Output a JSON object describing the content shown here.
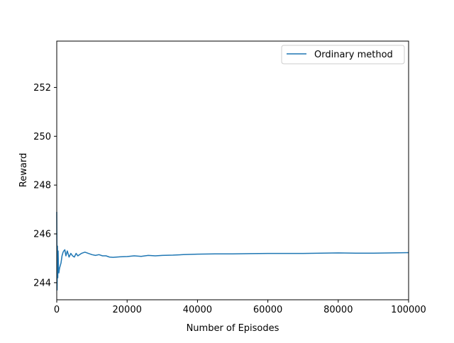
{
  "chart_data": {
    "type": "line",
    "title": "",
    "xlabel": "Number of Episodes",
    "ylabel": "Reward",
    "xlim": [
      0,
      100000
    ],
    "ylim": [
      243.3,
      253.9
    ],
    "xticks": [
      0,
      20000,
      40000,
      60000,
      80000,
      100000
    ],
    "xtick_labels": [
      "0",
      "20000",
      "40000",
      "60000",
      "80000",
      "100000"
    ],
    "yticks": [
      244,
      246,
      248,
      250,
      252
    ],
    "ytick_labels": [
      "244",
      "246",
      "248",
      "250",
      "252"
    ],
    "grid": false,
    "legend": {
      "position": "upper right",
      "entries": [
        "Ordinary method"
      ]
    },
    "series": [
      {
        "name": "Ordinary method",
        "color": "#1f77b4",
        "x": [
          0,
          100,
          200,
          300,
          400,
          500,
          600,
          700,
          800,
          1000,
          1200,
          1500,
          1800,
          2000,
          2300,
          2600,
          3000,
          3500,
          4000,
          4500,
          5000,
          5500,
          6000,
          7000,
          8000,
          9000,
          10000,
          11000,
          12000,
          13000,
          14000,
          15000,
          16000,
          17000,
          18000,
          20000,
          22000,
          24000,
          26000,
          28000,
          30000,
          33000,
          36000,
          40000,
          45000,
          50000,
          55000,
          60000,
          65000,
          70000,
          75000,
          80000,
          85000,
          90000,
          95000,
          100000
        ],
        "y": [
          246.9,
          243.7,
          245.5,
          244.2,
          245.3,
          244.6,
          244.4,
          244.5,
          244.6,
          244.7,
          244.8,
          245.1,
          245.25,
          245.3,
          245.35,
          245.1,
          245.3,
          245.05,
          245.2,
          245.1,
          245.05,
          245.2,
          245.1,
          245.2,
          245.25,
          245.2,
          245.15,
          245.12,
          245.15,
          245.1,
          245.1,
          245.05,
          245.04,
          245.05,
          245.06,
          245.07,
          245.1,
          245.08,
          245.12,
          245.1,
          245.12,
          245.13,
          245.15,
          245.17,
          245.18,
          245.18,
          245.19,
          245.2,
          245.2,
          245.2,
          245.21,
          245.22,
          245.21,
          245.21,
          245.22,
          245.23
        ]
      }
    ]
  }
}
